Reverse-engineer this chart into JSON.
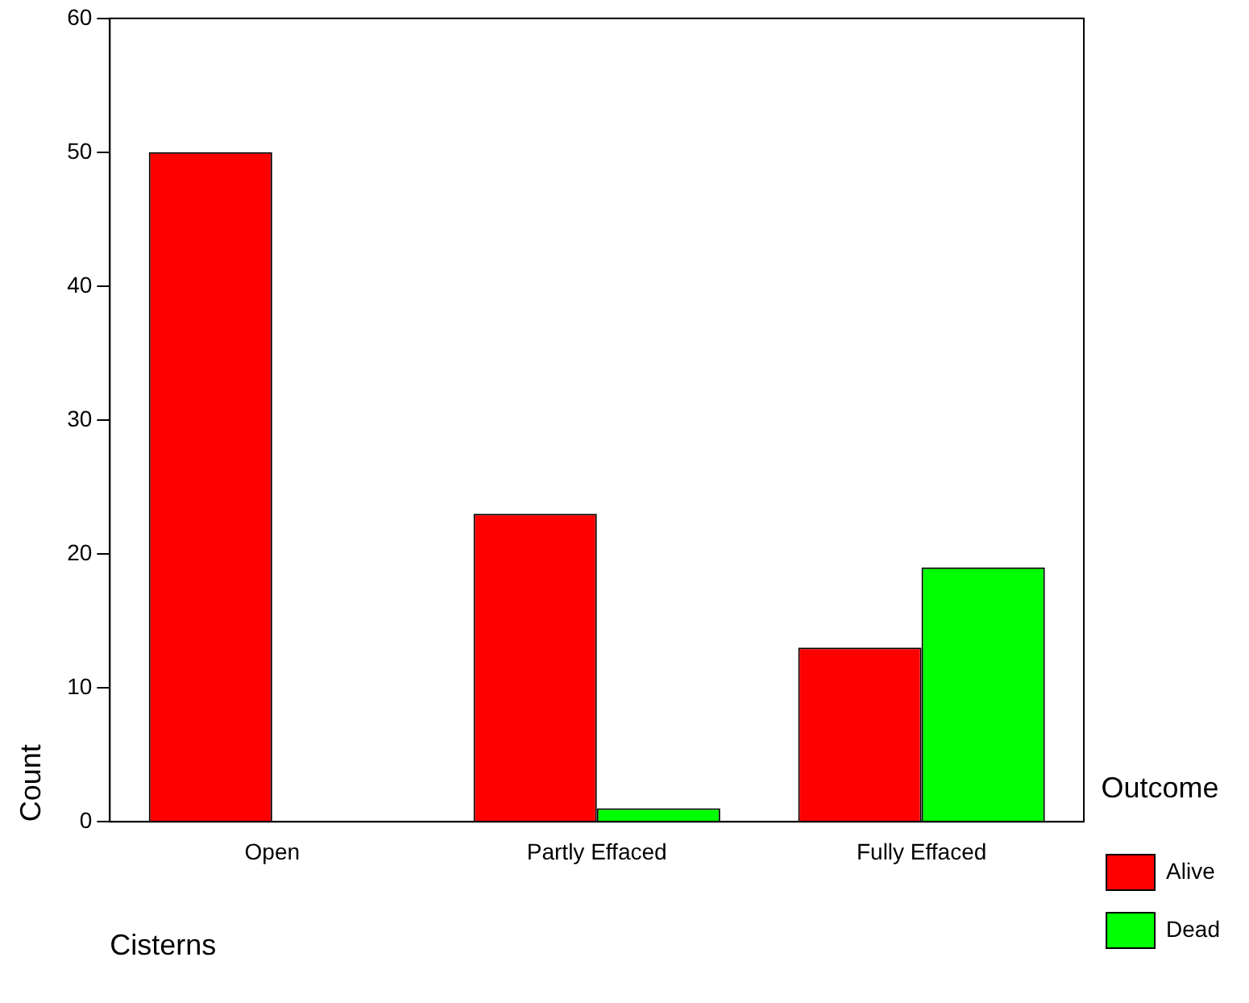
{
  "chart_data": {
    "type": "bar",
    "xlabel": "Cisterns",
    "ylabel": "Count",
    "legend_title": "Outcome",
    "categories": [
      "Open",
      "Partly Effaced",
      "Fully Effaced"
    ],
    "series": [
      {
        "name": "Alive",
        "color": "#ff0000",
        "values": [
          50,
          23,
          13
        ]
      },
      {
        "name": "Dead",
        "color": "#00ff00",
        "values": [
          0,
          1,
          19
        ]
      }
    ],
    "ylim": [
      0,
      60
    ],
    "yticks": [
      0,
      10,
      20,
      30,
      40,
      50,
      60
    ],
    "grid": false,
    "legend": "right"
  }
}
